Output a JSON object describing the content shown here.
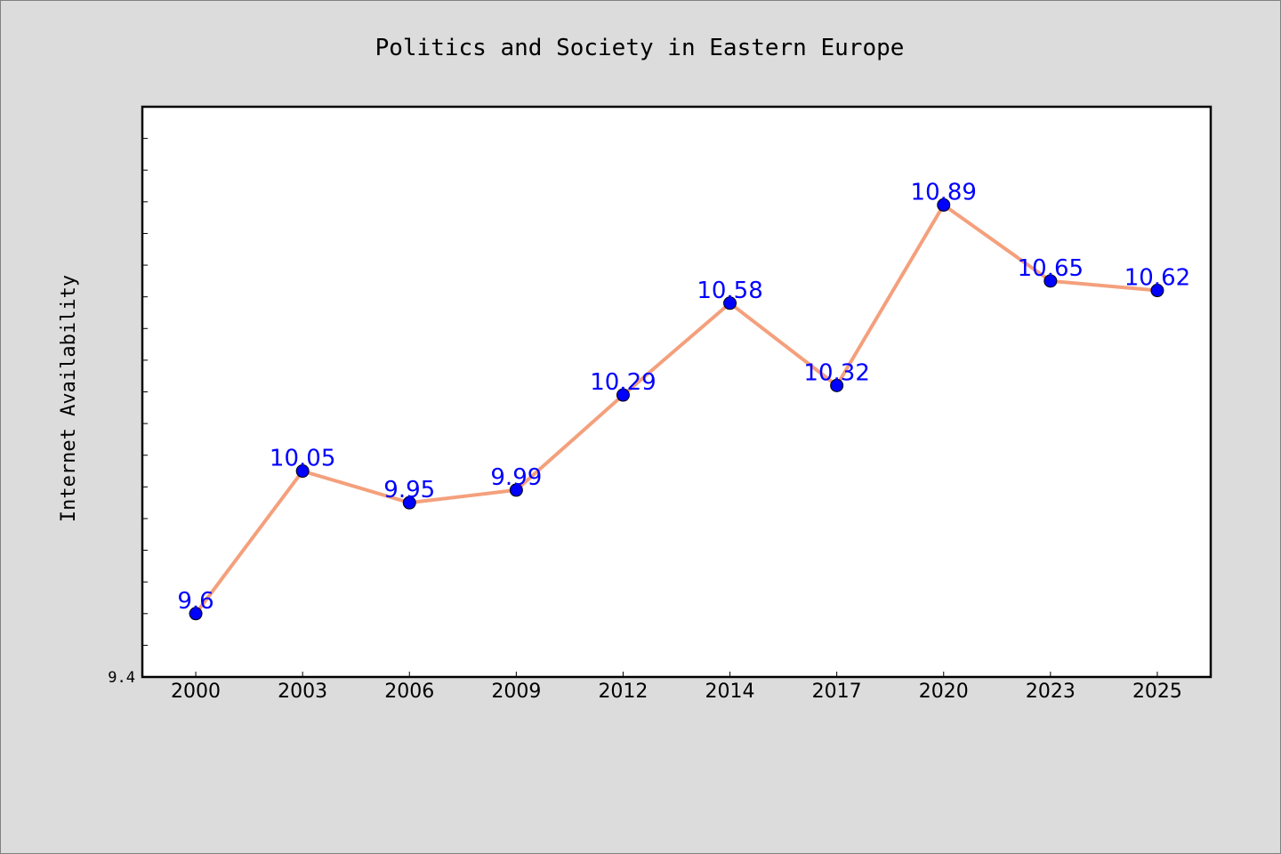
{
  "chart_data": {
    "type": "line",
    "title": "Politics and Society in Eastern Europe",
    "xlabel": "",
    "ylabel": "Internet Availability",
    "categories": [
      "2000",
      "2003",
      "2006",
      "2009",
      "2012",
      "2014",
      "2017",
      "2020",
      "2023",
      "2025"
    ],
    "series": [
      {
        "values": [
          9.6,
          10.05,
          9.95,
          9.99,
          10.29,
          10.58,
          10.32,
          10.89,
          10.65,
          10.62
        ],
        "data_labels": [
          "9.6",
          "10.05",
          "9.95",
          "9.99",
          "10.29",
          "10.58",
          "10.32",
          "10.89",
          "10.65",
          "10.62"
        ]
      }
    ],
    "ylim": [
      9.4,
      11.2
    ],
    "ytick_labels": [
      "9.4"
    ],
    "grid": false,
    "line_color": "#f4a07c",
    "marker_color": "#0000ff",
    "label_color": "#0000ff",
    "plot_background": "#ffffff",
    "figure_background": "#dcdcdc"
  }
}
